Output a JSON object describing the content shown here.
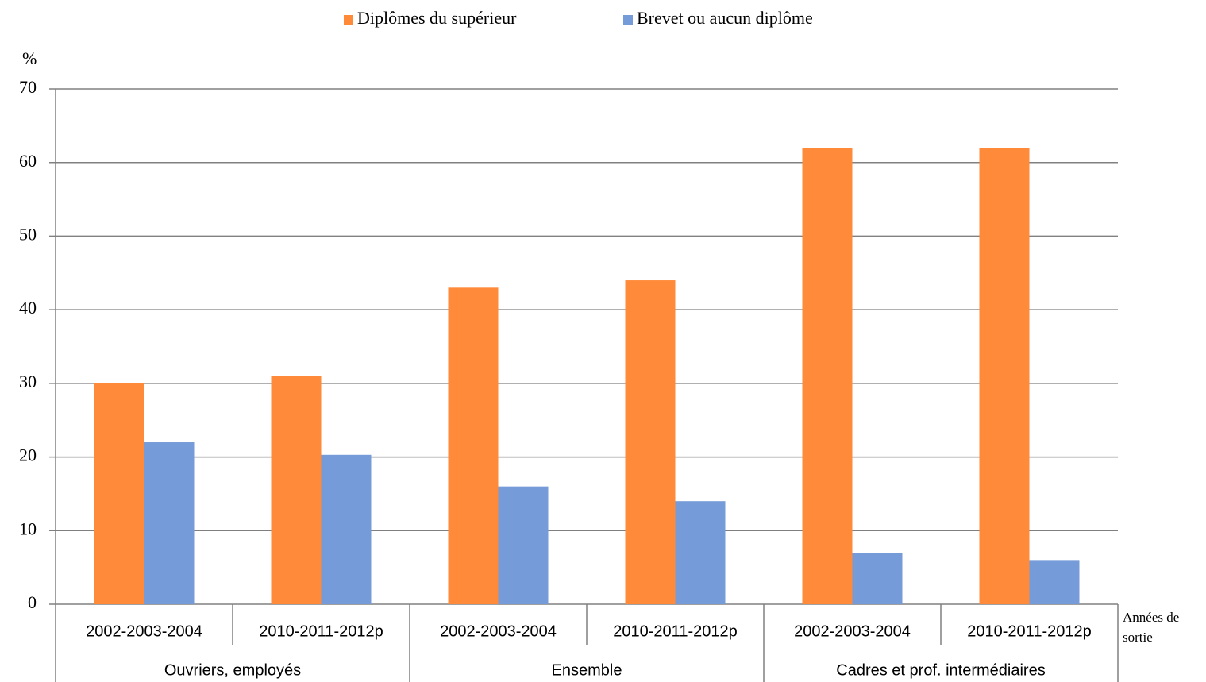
{
  "chart_data": {
    "type": "bar",
    "y_label": "%",
    "x_label": "Années de sortie",
    "categories": [
      "2002-2003-2004",
      "2010-2011-2012p",
      "2002-2003-2004",
      "2010-2011-2012p",
      "2002-2003-2004",
      "2010-2011-2012p"
    ],
    "category_groups": [
      "Ouvriers, employés",
      "Ensemble",
      "Cadres et prof. intermédiaires"
    ],
    "series": [
      {
        "name": "Diplômes du supérieur",
        "color": "#ff8a3a",
        "values": [
          30,
          31,
          43,
          44,
          62,
          62
        ]
      },
      {
        "name": "Brevet ou aucun diplôme",
        "color": "#769bd9",
        "values": [
          22,
          20.3,
          16,
          14,
          7,
          6
        ]
      }
    ],
    "ylim": [
      0,
      70
    ],
    "yticks": [
      0,
      10,
      20,
      30,
      40,
      50,
      60,
      70
    ],
    "grid": true,
    "legend": "top"
  }
}
